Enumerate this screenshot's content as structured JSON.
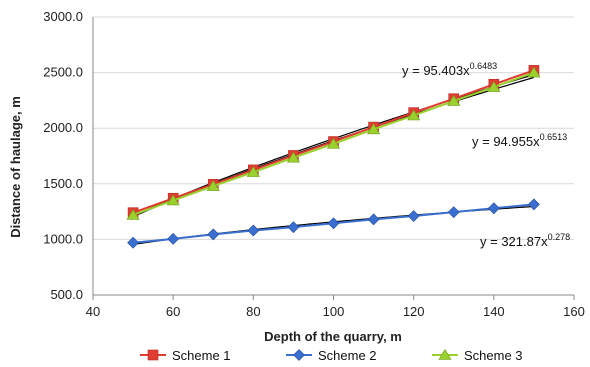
{
  "chart_data": {
    "type": "line",
    "xlabel": "Depth of the quarry, m",
    "ylabel": "Distance of haulage, m",
    "xlim": [
      40,
      160
    ],
    "ylim": [
      500,
      3000
    ],
    "xticks": [
      "40",
      "60",
      "80",
      "100",
      "120",
      "140",
      "160"
    ],
    "yticks": [
      "500.0",
      "1000.0",
      "1500.0",
      "2000.0",
      "2500.0",
      "3000.0"
    ],
    "grid": "horizontal",
    "legend_position": "bottom",
    "x": [
      50,
      60,
      70,
      80,
      90,
      100,
      110,
      120,
      130,
      140,
      150
    ],
    "series": [
      {
        "name": "Scheme 1",
        "color": "#e03c31",
        "marker": "square",
        "values": [
          1240,
          1370,
          1495,
          1625,
          1755,
          1880,
          2010,
          2140,
          2265,
          2395,
          2520
        ]
      },
      {
        "name": "Scheme 2",
        "color": "#3a6fcf",
        "marker": "diamond",
        "values": [
          970,
          1005,
          1045,
          1080,
          1110,
          1145,
          1180,
          1210,
          1245,
          1280,
          1315
        ]
      },
      {
        "name": "Scheme 3",
        "color": "#9ad12e",
        "marker": "triangle",
        "values": [
          1220,
          1350,
          1480,
          1605,
          1735,
          1860,
          1990,
          2115,
          2245,
          2370,
          2500
        ]
      }
    ],
    "trendlines": [
      {
        "coef": "95.403",
        "exp": "0.6483",
        "a": 95.403,
        "b": 0.6483,
        "color": "#000000"
      },
      {
        "coef": "94.955",
        "exp": "0.6513",
        "a": 94.955,
        "b": 0.6513,
        "color": "#000000"
      },
      {
        "coef": "321.87",
        "exp": "0.278",
        "a": 321.87,
        "b": 0.278,
        "color": "#000000"
      }
    ]
  }
}
